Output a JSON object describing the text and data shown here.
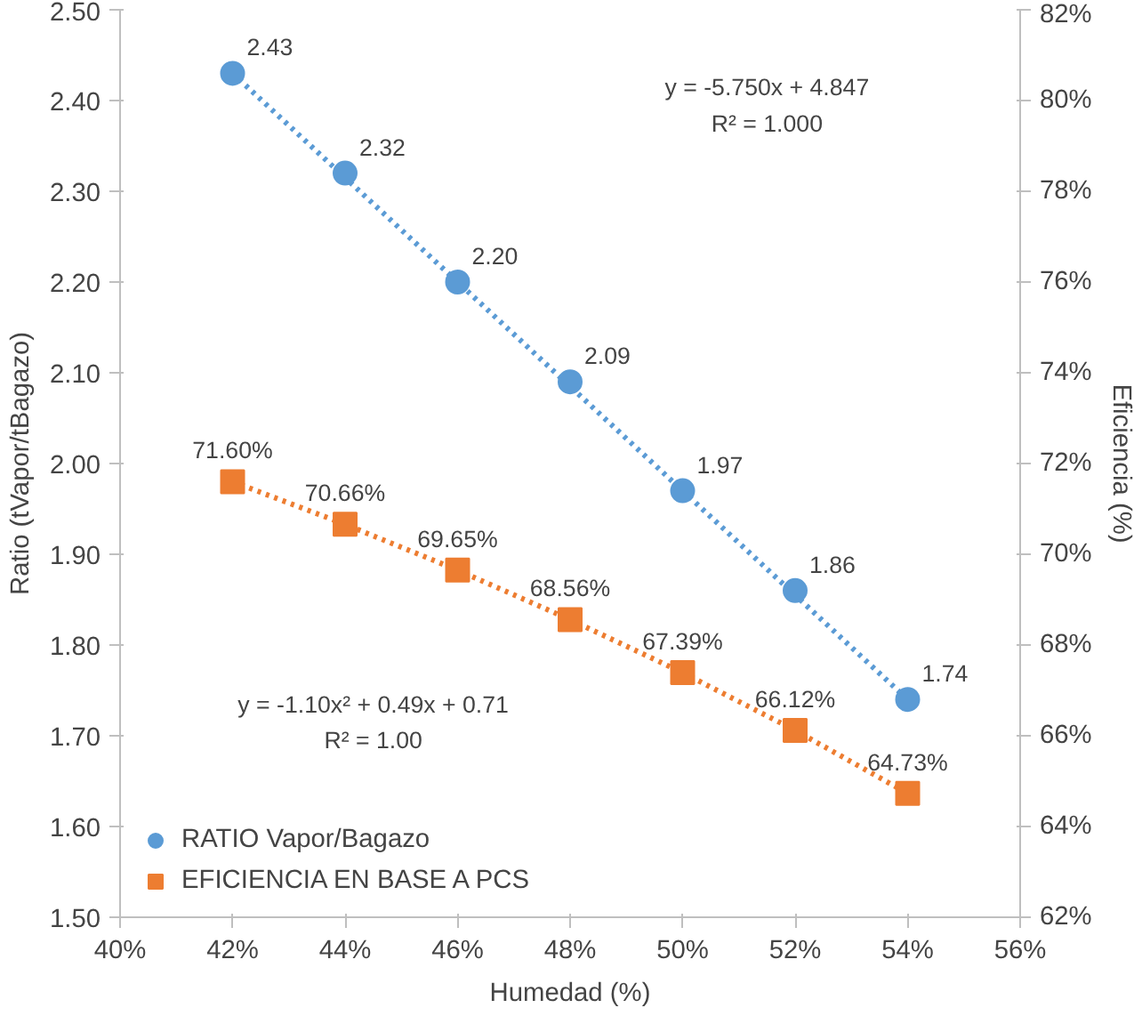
{
  "chart_data": {
    "type": "scatter",
    "xlabel": "Humedad (%)",
    "ylabel": "Ratio (tVapor/tBagazo)",
    "y2label": "Eficiencia (%)",
    "x": [
      42,
      44,
      46,
      48,
      50,
      52,
      54
    ],
    "series": [
      {
        "name": "RATIO Vapor/Bagazo",
        "color": "#5b9bd5",
        "marker": "circle",
        "values": [
          2.43,
          2.32,
          2.2,
          2.09,
          1.97,
          1.86,
          1.74
        ],
        "value_labels": [
          "2.43",
          "2.32",
          "2.20",
          "2.09",
          "1.97",
          "1.86",
          "1.74"
        ]
      },
      {
        "name": "EFICIENCIA EN BASE A PCS",
        "color": "#ed7d31",
        "marker": "square",
        "axis": "y2",
        "values": [
          71.6,
          70.66,
          69.65,
          68.56,
          67.39,
          66.12,
          64.73
        ],
        "value_labels": [
          "71.60%",
          "70.66%",
          "69.65%",
          "68.56%",
          "67.39%",
          "66.12%",
          "64.73%"
        ]
      },
      {
        "type": "line",
        "line_style": "dotted",
        "color": "#5b9bd5",
        "x": [
          42,
          54
        ],
        "values": [
          2.43,
          1.74
        ]
      },
      {
        "type": "line",
        "line_style": "dotted",
        "color": "#ed7d31",
        "axis": "y2",
        "x": [
          42,
          44,
          46,
          48,
          50,
          52,
          54
        ],
        "values": [
          71.6,
          70.66,
          69.65,
          68.56,
          67.39,
          66.12,
          64.73
        ]
      }
    ],
    "xlim": [
      40,
      56
    ],
    "xticks": [
      {
        "value": 40,
        "label": "40%"
      },
      {
        "value": 42,
        "label": "42%"
      },
      {
        "value": 44,
        "label": "44%"
      },
      {
        "value": 46,
        "label": "46%"
      },
      {
        "value": 48,
        "label": "48%"
      },
      {
        "value": 50,
        "label": "50%"
      },
      {
        "value": 52,
        "label": "52%"
      },
      {
        "value": 54,
        "label": "54%"
      },
      {
        "value": 56,
        "label": "56%"
      }
    ],
    "ylim": [
      1.5,
      2.5
    ],
    "yticks": [
      {
        "value": 1.5,
        "label": "1.50"
      },
      {
        "value": 1.6,
        "label": "1.60"
      },
      {
        "value": 1.7,
        "label": "1.70"
      },
      {
        "value": 1.8,
        "label": "1.80"
      },
      {
        "value": 1.9,
        "label": "1.90"
      },
      {
        "value": 2.0,
        "label": "2.00"
      },
      {
        "value": 2.1,
        "label": "2.10"
      },
      {
        "value": 2.2,
        "label": "2.20"
      },
      {
        "value": 2.3,
        "label": "2.30"
      },
      {
        "value": 2.4,
        "label": "2.40"
      },
      {
        "value": 2.5,
        "label": "2.50"
      }
    ],
    "y2lim": [
      62,
      82
    ],
    "y2ticks": [
      {
        "value": 62,
        "label": "62%"
      },
      {
        "value": 64,
        "label": "64%"
      },
      {
        "value": 66,
        "label": "66%"
      },
      {
        "value": 68,
        "label": "68%"
      },
      {
        "value": 70,
        "label": "70%"
      },
      {
        "value": 72,
        "label": "72%"
      },
      {
        "value": 74,
        "label": "74%"
      },
      {
        "value": 76,
        "label": "76%"
      },
      {
        "value": 78,
        "label": "78%"
      },
      {
        "value": 80,
        "label": "80%"
      },
      {
        "value": 82,
        "label": "82%"
      }
    ],
    "annotations": [
      "y = -5.750x + 4.847",
      "R² = 1.000",
      "y = -1.10x² + 0.49x + 0.71",
      "R² = 1.00"
    ],
    "grid": false,
    "legend": "bottom left"
  }
}
